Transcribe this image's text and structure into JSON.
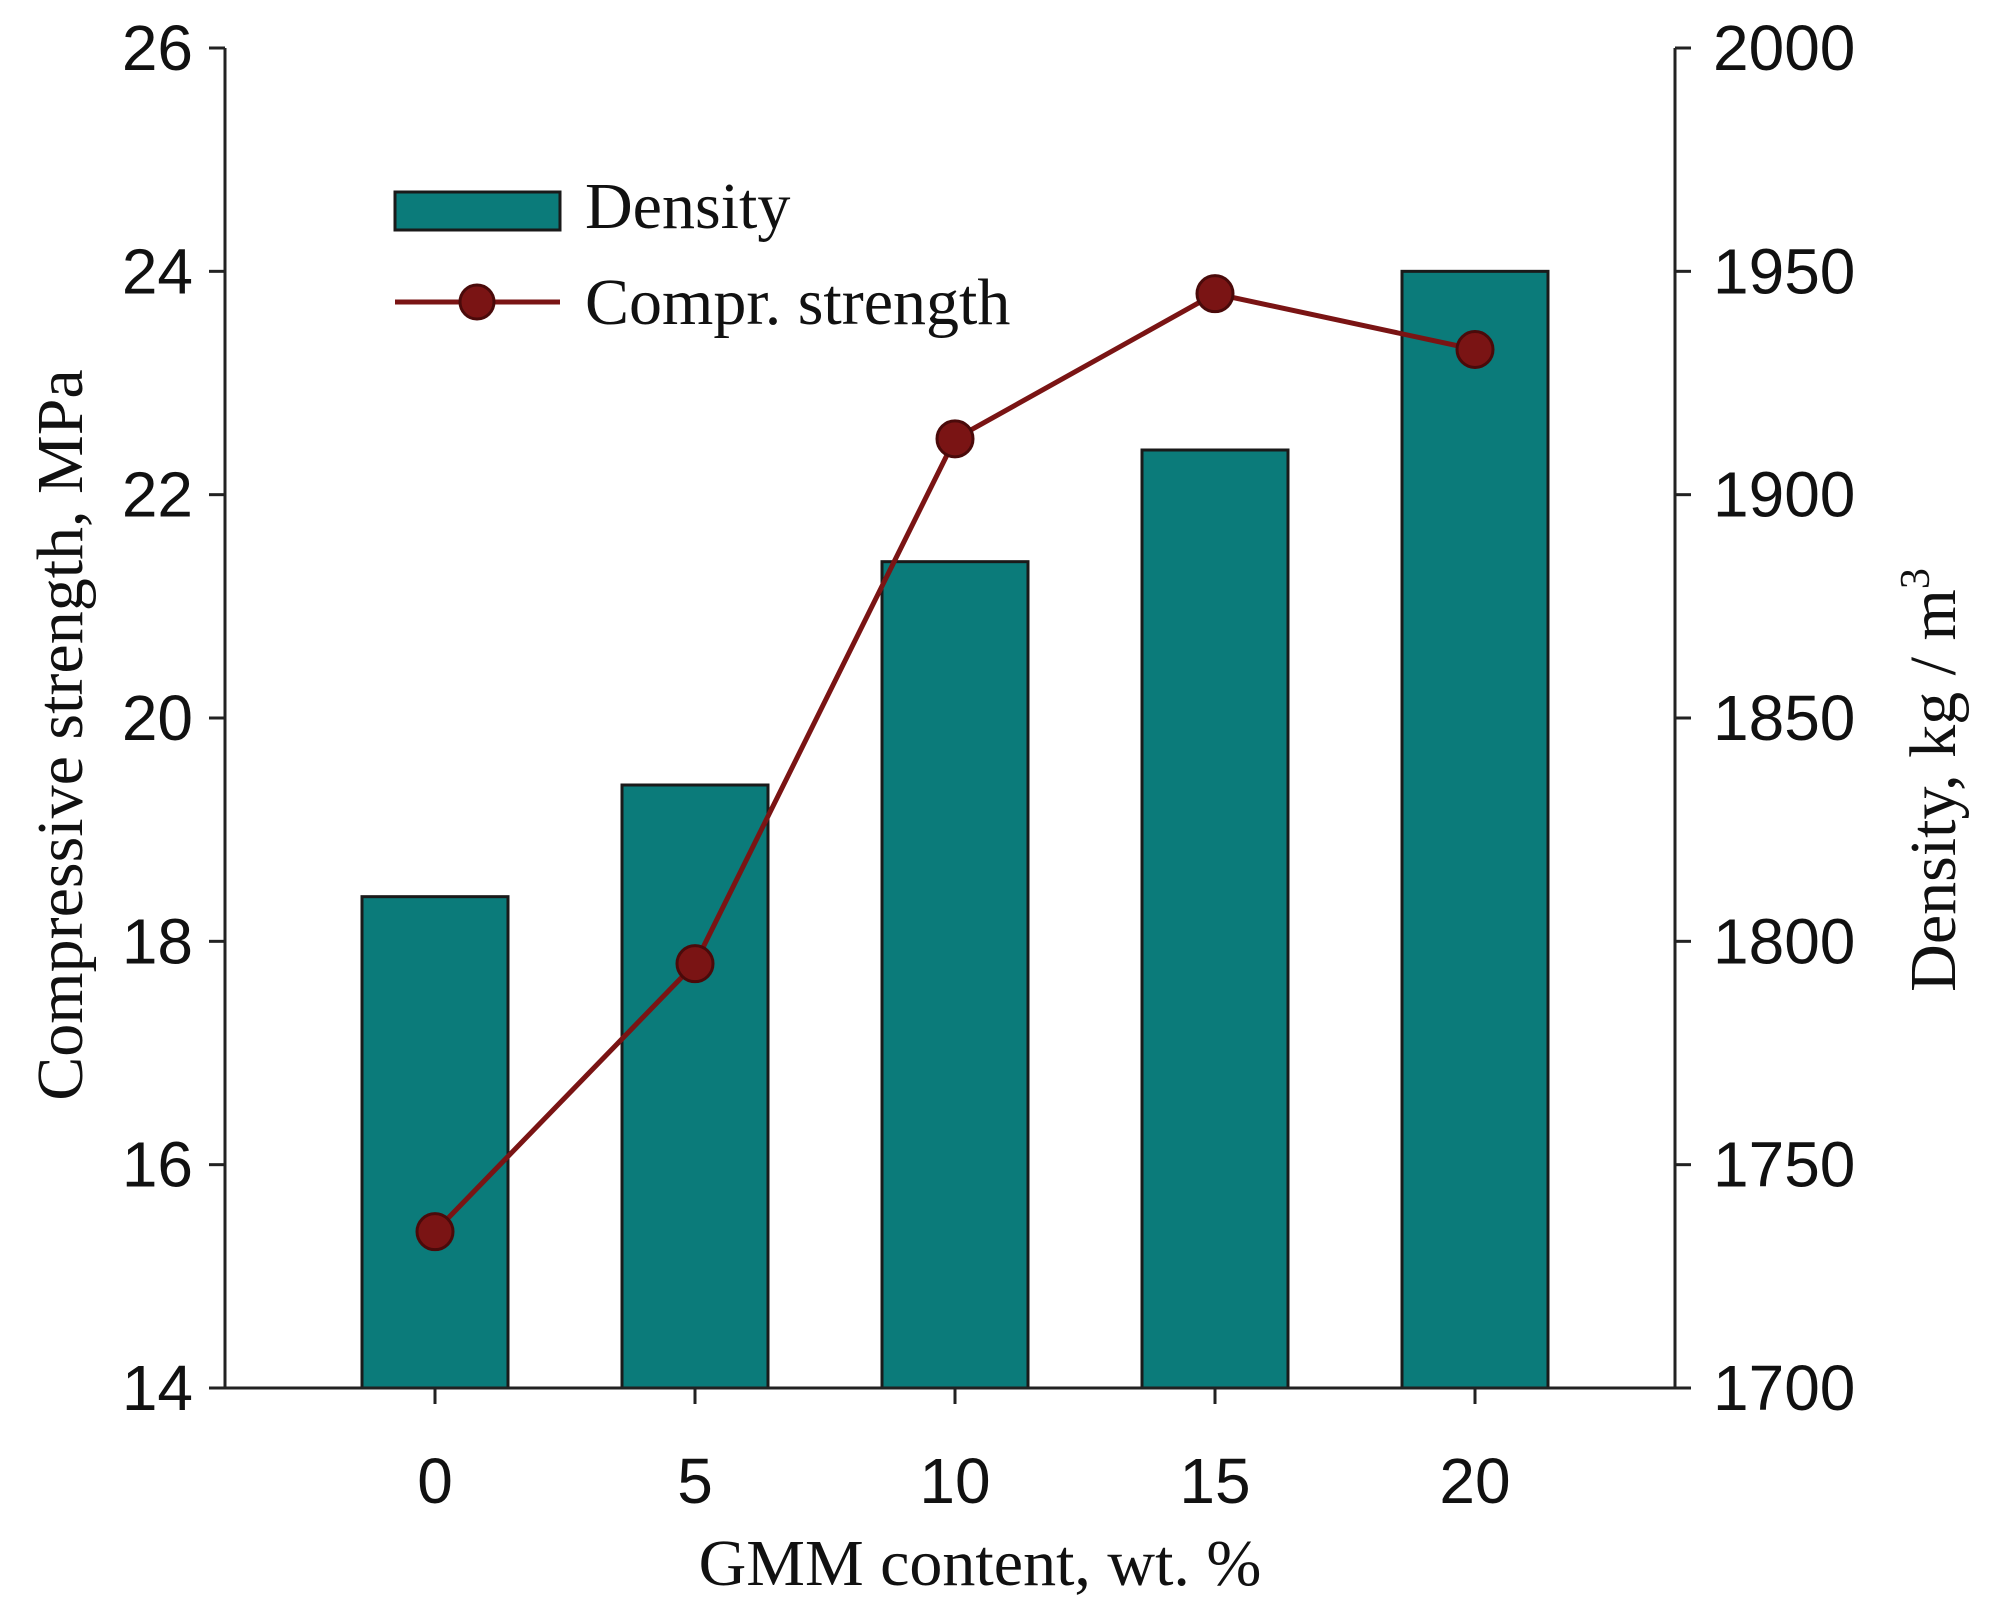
{
  "chart_data": {
    "type": "bar+line",
    "categories": [
      "0",
      "5",
      "10",
      "15",
      "20"
    ],
    "xlabel": "GMM content, wt. %",
    "ylabel_left": "Compressive strength, MPa",
    "ylabel_right": "Density, kg / m",
    "ylabel_right_superscript": "3",
    "ylim_left": [
      14,
      26
    ],
    "yticks_left": [
      14,
      16,
      18,
      20,
      22,
      24,
      26
    ],
    "ylim_right": [
      1700,
      2000
    ],
    "yticks_right": [
      1700,
      1750,
      1800,
      1850,
      1900,
      1950,
      2000
    ],
    "grid": false,
    "legend_position": "top-left",
    "series": [
      {
        "name": "Density",
        "type": "bar",
        "axis": "right",
        "color": "#0b7b7a",
        "values": [
          1810,
          1835,
          1885,
          1910,
          1950
        ]
      },
      {
        "name": "Compr. strength",
        "type": "line",
        "axis": "left",
        "color": "#7a1414",
        "marker": "circle",
        "values": [
          15.4,
          17.8,
          22.5,
          23.8,
          23.3
        ]
      }
    ]
  }
}
